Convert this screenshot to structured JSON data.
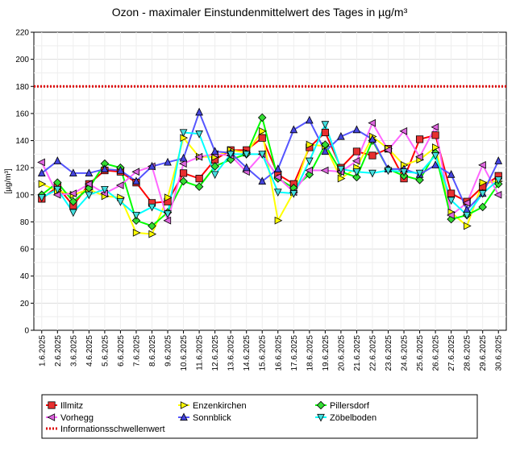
{
  "chart_data": {
    "type": "line",
    "title": "Ozon -  maximaler Einstundenmittelwert des Tages in µg/m³",
    "ylabel": "[µg/m³]",
    "xlabel": "",
    "ylim": [
      0,
      220
    ],
    "yticks": [
      0,
      20,
      40,
      60,
      80,
      100,
      120,
      140,
      160,
      180,
      200,
      220
    ],
    "grid": true,
    "legend_position": "bottom",
    "categories": [
      "1.6.2025",
      "2.6.2025",
      "3.6.2025",
      "4.6.2025",
      "5.6.2025",
      "6.6.2025",
      "7.6.2025",
      "8.6.2025",
      "9.6.2025",
      "10.6.2025",
      "11.6.2025",
      "12.6.2025",
      "13.6.2025",
      "14.6.2025",
      "15.6.2025",
      "16.6.2025",
      "17.6.2025",
      "18.6.2025",
      "19.6.2025",
      "20.6.2025",
      "21.6.2025",
      "22.6.2025",
      "23.6.2025",
      "24.6.2025",
      "25.6.2025",
      "26.6.2025",
      "27.6.2025",
      "28.6.2025",
      "29.6.2025",
      "30.6.2025"
    ],
    "series": [
      {
        "name": "Illmitz",
        "color": "#ff0000",
        "marker": "square",
        "marker_fill": "#e83030",
        "values": [
          97,
          106,
          92,
          108,
          118,
          117,
          109,
          94,
          95,
          116,
          112,
          126,
          133,
          133,
          142,
          115,
          108,
          135,
          146,
          120,
          132,
          129,
          134,
          112,
          141,
          144,
          101,
          95,
          106,
          114
        ]
      },
      {
        "name": "Enzenkirchen",
        "color": "#ffff00",
        "marker": "triangle-right",
        "marker_fill": "#ffff00",
        "values": [
          108,
          103,
          100,
          104,
          99,
          98,
          72,
          71,
          98,
          142,
          128,
          128,
          133,
          131,
          147,
          81,
          102,
          137,
          136,
          112,
          120,
          143,
          134,
          122,
          126,
          135,
          87,
          77,
          109,
          110
        ]
      },
      {
        "name": "Pillersdorf",
        "color": "#00ff00",
        "marker": "diamond",
        "marker_fill": "#33dd33",
        "values": [
          100,
          109,
          95,
          105,
          123,
          120,
          81,
          77,
          87,
          110,
          106,
          121,
          126,
          130,
          157,
          112,
          105,
          115,
          137,
          117,
          113,
          140,
          119,
          114,
          111,
          131,
          82,
          85,
          91,
          108
        ]
      },
      {
        "name": "Vorhegg",
        "color": "#ff66ff",
        "marker": "triangle-left",
        "marker_fill": "#dd66dd",
        "values": [
          124,
          100,
          101,
          108,
          101,
          107,
          117,
          121,
          81,
          123,
          128,
          130,
          129,
          117,
          130,
          113,
          102,
          118,
          118,
          117,
          125,
          153,
          133,
          147,
          128,
          150,
          85,
          94,
          122,
          100
        ]
      },
      {
        "name": "Sonnblick",
        "color": "#5555ff",
        "marker": "triangle-up",
        "marker_fill": "#4444dd",
        "values": [
          116,
          125,
          116,
          116,
          119,
          118,
          110,
          121,
          124,
          127,
          161,
          132,
          131,
          120,
          110,
          119,
          148,
          155,
          132,
          143,
          148,
          141,
          119,
          119,
          115,
          122,
          115,
          89,
          101,
          125
        ]
      },
      {
        "name": "Zöbelboden",
        "color": "#00ffff",
        "marker": "triangle-down",
        "marker_fill": "#44dddd",
        "values": [
          98,
          104,
          87,
          100,
          104,
          95,
          85,
          91,
          86,
          146,
          145,
          115,
          130,
          130,
          130,
          102,
          101,
          125,
          152,
          119,
          117,
          116,
          118,
          117,
          116,
          129,
          96,
          85,
          101,
          111
        ]
      },
      {
        "name": "Informationsschwellenwert",
        "color": "#dd0000",
        "style": "dotted",
        "constant": 180
      }
    ]
  }
}
